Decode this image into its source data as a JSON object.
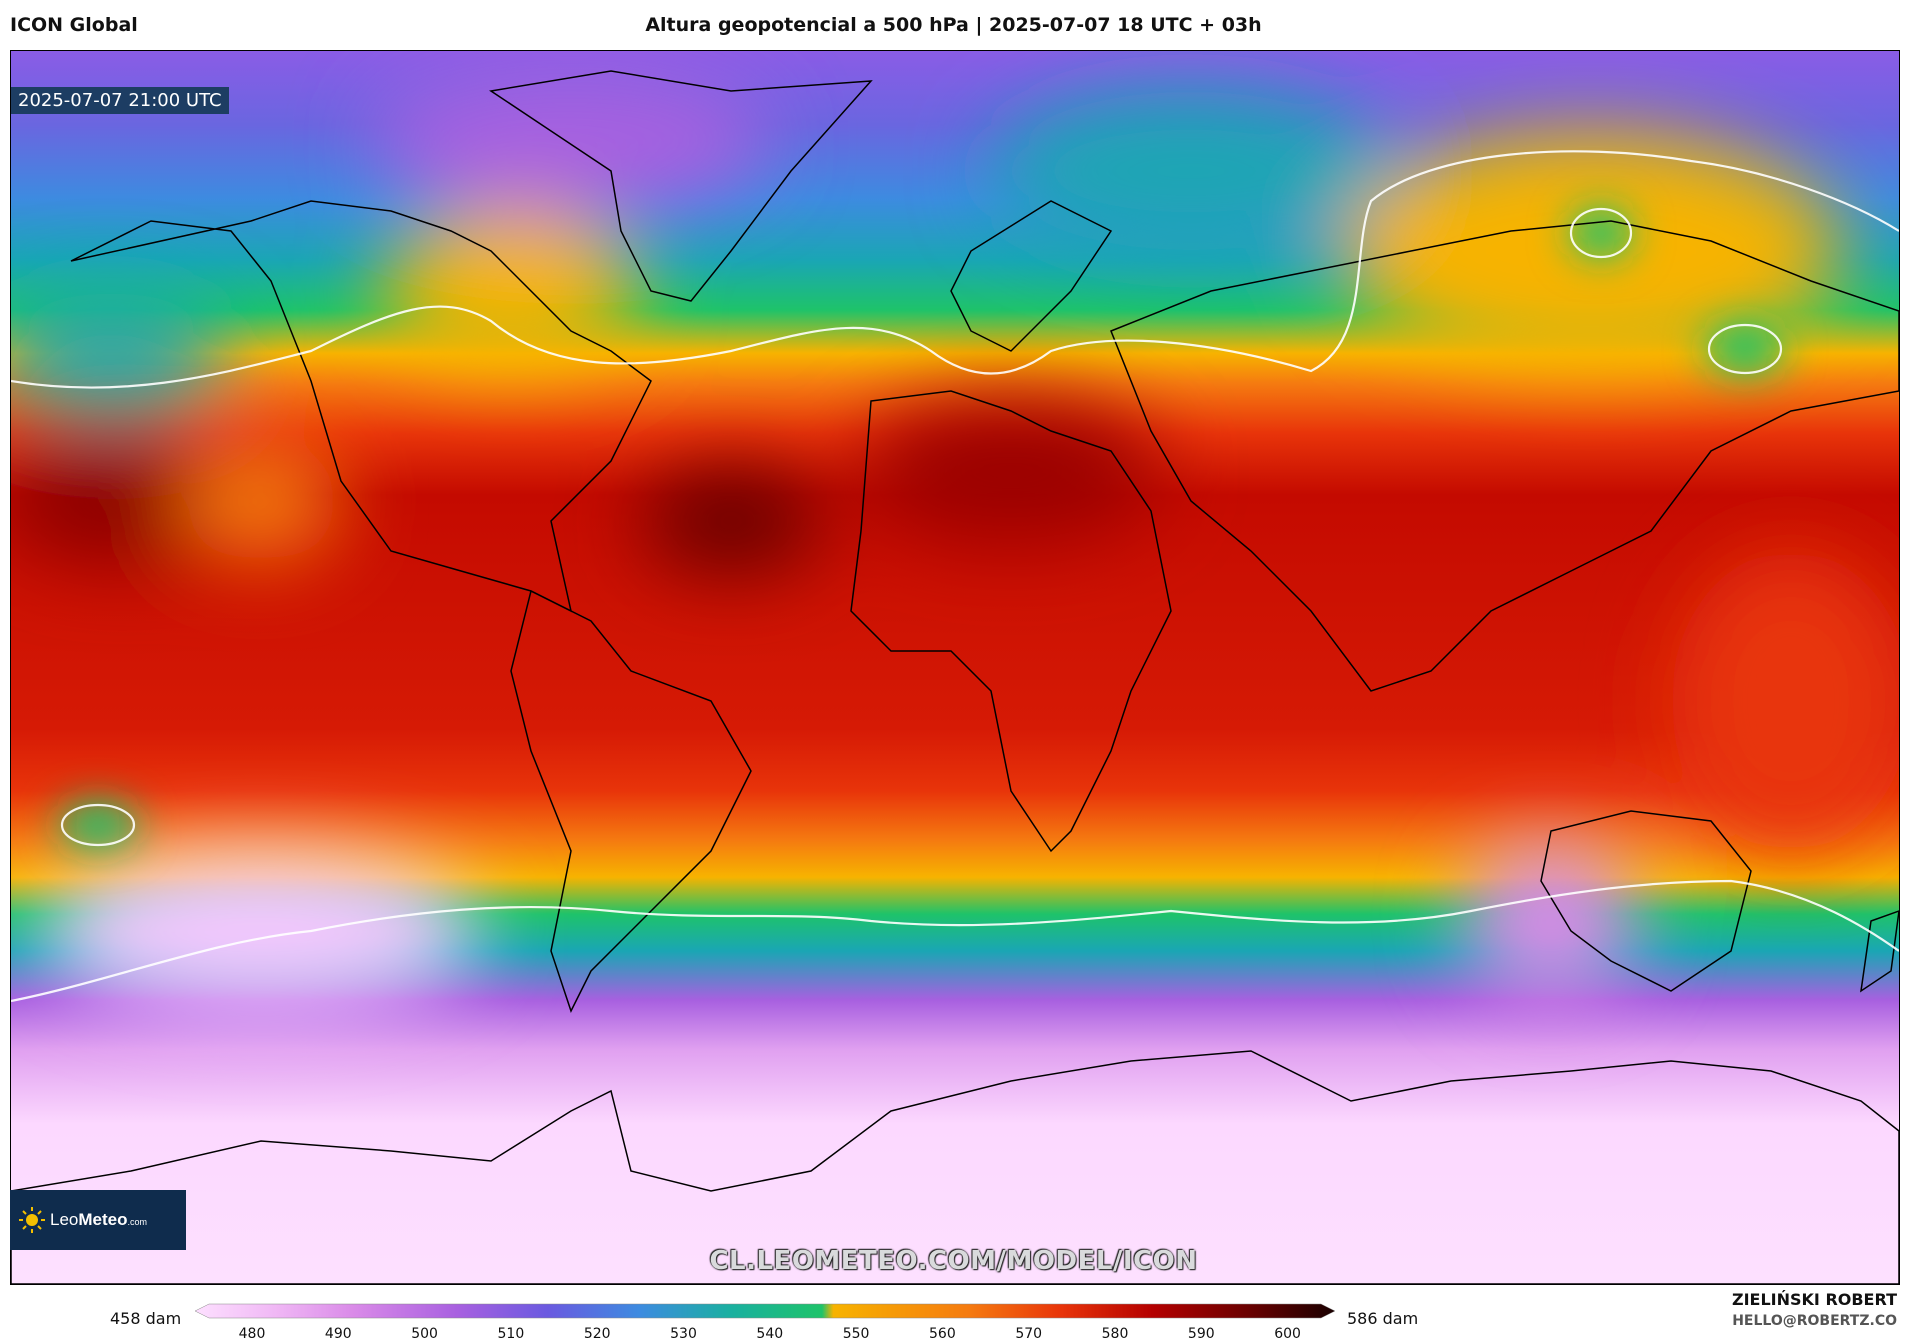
{
  "header": {
    "model": "ICON Global",
    "title": "Altura geopotencial a 500 hPa | 2025-07-07 18 UTC + 03h"
  },
  "map": {
    "valid_time": "2025-07-07 21:00 UTC",
    "watermark_url": "CL.LEOMETEO.COM/MODEL/ICON",
    "logo_text_light": "Leo",
    "logo_text_bold": "Meteo",
    "logo_text_small": ".com",
    "icon": "sun-logo-icon"
  },
  "colorbar": {
    "min_label": "458 dam",
    "max_label": "586 dam",
    "ticks": [
      "480",
      "490",
      "500",
      "510",
      "520",
      "530",
      "540",
      "550",
      "560",
      "570",
      "580",
      "590",
      "600"
    ],
    "stops": [
      "#fde0ff",
      "#f0b8f5",
      "#d98ae8",
      "#a860e0",
      "#6a5ae0",
      "#3d8be0",
      "#1ab0a0",
      "#1ec36a",
      "#f7b300",
      "#f57a10",
      "#e8340a",
      "#b40000",
      "#640000",
      "#1a0000"
    ]
  },
  "credits": {
    "author": "ZIELIŃSKI ROBERT",
    "email": "HELLO@ROBERTZ.CO"
  }
}
